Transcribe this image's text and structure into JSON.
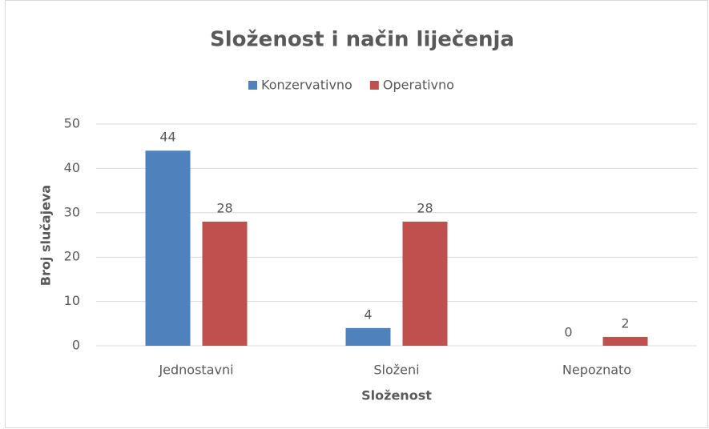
{
  "chart_data": {
    "type": "bar",
    "title": "Složenost i način liječenja",
    "categories": [
      "Jednostavni",
      "Složeni",
      "Nepoznato"
    ],
    "series": [
      {
        "name": "Konzervativno",
        "color": "#4f81bd",
        "values": [
          44,
          4,
          0
        ]
      },
      {
        "name": "Operativno",
        "color": "#c0504d",
        "values": [
          28,
          28,
          2
        ]
      }
    ],
    "x_label": "Složenost",
    "y_label": "Broj slučajeva",
    "ylim": [
      0,
      50
    ],
    "yticks": [
      0,
      10,
      20,
      30,
      40,
      50
    ],
    "grid": true,
    "legend": "top"
  }
}
